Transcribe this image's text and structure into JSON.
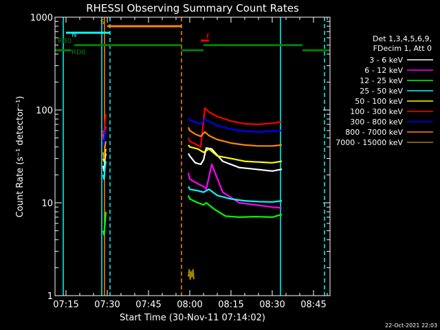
{
  "chart_data": {
    "type": "line",
    "title": "RHESSI Observing Summary Count Rates",
    "xlabel": "Start Time (30-Nov-11 07:14:02)",
    "ylabel": "Count Rate (s⁻¹ detector⁻¹)",
    "yscale": "log",
    "ylim": [
      1,
      1000
    ],
    "xlim": [
      "07:11",
      "08:51"
    ],
    "x_ticks": [
      "07:15",
      "07:30",
      "07:45",
      "08:00",
      "08:15",
      "08:30",
      "08:45"
    ],
    "y_ticks": [
      "1",
      "10",
      "100",
      "1000"
    ],
    "date_stamp": "22-Oct-2021 22:03",
    "legend": {
      "placement": "right",
      "header": [
        "Det 1,3,4,5,6,9,",
        "FDecim 1, Att 0"
      ]
    },
    "series": [
      {
        "name": "3 - 6 keV",
        "color": "#ffffff",
        "segments": [
          {
            "x": [
              "07:28:30",
              "07:28:50",
              "07:29:10",
              "07:29:30"
            ],
            "y": [
              25,
              22,
              30,
              34
            ]
          },
          {
            "x": [
              "07:59:30",
              "08:00:00",
              "08:02:00",
              "08:04:00",
              "08:05:00",
              "08:06:00",
              "08:08:00",
              "08:12:00",
              "08:18:00",
              "08:24:00",
              "08:30:00",
              "08:33:30"
            ],
            "y": [
              34,
              32,
              27,
              26,
              29,
              39,
              38,
              28,
              24,
              23,
              22,
              23
            ]
          }
        ]
      },
      {
        "name": "6 - 12 keV",
        "color": "#ff00ff",
        "segments": [
          {
            "x": [
              "07:28:30",
              "07:28:50",
              "07:29:10",
              "07:29:30"
            ],
            "y": [
              55,
              48,
              60,
              66
            ]
          },
          {
            "x": [
              "07:59:30",
              "08:00:00",
              "08:03:00",
              "08:05:00",
              "08:06:00",
              "08:08:00",
              "08:12:00",
              "08:18:00",
              "08:24:00",
              "08:30:00",
              "08:33:30"
            ],
            "y": [
              21,
              18,
              16,
              15,
              14,
              26,
              13,
              10,
              9.5,
              9,
              8.8
            ]
          }
        ]
      },
      {
        "name": "12 - 25 keV",
        "color": "#00ff00",
        "segments": [
          {
            "x": [
              "07:28:30",
              "07:28:50",
              "07:29:10",
              "07:29:30"
            ],
            "y": [
              5,
              4.5,
              6,
              8
            ]
          },
          {
            "x": [
              "07:59:30",
              "08:00:00",
              "08:03:00",
              "08:05:00",
              "08:06:00",
              "08:09:00",
              "08:13:00",
              "08:18:00",
              "08:24:00",
              "08:30:00",
              "08:33:30"
            ],
            "y": [
              12,
              11,
              10,
              9.5,
              10,
              8.5,
              7.2,
              7,
              7.1,
              7,
              7.5
            ]
          }
        ]
      },
      {
        "name": "25 - 50 keV",
        "color": "#00ffff",
        "segments": [
          {
            "x": [
              "07:28:30",
              "07:28:50",
              "07:29:10",
              "07:29:30"
            ],
            "y": [
              20,
              18,
              24,
              28
            ]
          },
          {
            "x": [
              "07:59:30",
              "08:00:00",
              "08:03:00",
              "08:05:00",
              "08:07:00",
              "08:10:00",
              "08:15:00",
              "08:20:00",
              "08:25:00",
              "08:30:00",
              "08:33:30"
            ],
            "y": [
              15,
              14,
              13.5,
              13,
              14,
              12,
              11,
              10.5,
              10.3,
              10.2,
              10.5
            ]
          }
        ]
      },
      {
        "name": "50 - 100 keV",
        "color": "#ffff00",
        "segments": [
          {
            "x": [
              "07:28:30",
              "07:28:50",
              "07:29:10",
              "07:29:30"
            ],
            "y": [
              30,
              28,
              34,
              38
            ]
          },
          {
            "x": [
              "07:59:30",
              "08:00:00",
              "08:03:00",
              "08:05:00",
              "08:07:00",
              "08:10:00",
              "08:15:00",
              "08:20:00",
              "08:25:00",
              "08:30:00",
              "08:33:30"
            ],
            "y": [
              42,
              40,
              38,
              35,
              38,
              32,
              30,
              28,
              27.5,
              27,
              28
            ]
          }
        ]
      },
      {
        "name": "100 - 300 keV",
        "color": "#ff0000",
        "segments": [
          {
            "x": [
              "07:28:30",
              "07:28:50",
              "07:29:10",
              "07:29:30"
            ],
            "y": [
              60,
              55,
              75,
              90
            ]
          },
          {
            "x": [
              "07:59:30",
              "08:00:00",
              "08:02:00",
              "08:04:00",
              "08:05:30",
              "08:07:00",
              "08:10:00",
              "08:15:00",
              "08:20:00",
              "08:25:00",
              "08:30:00",
              "08:33:30"
            ],
            "y": [
              50,
              46,
              43,
              40,
              105,
              95,
              85,
              76,
              71,
              70,
              72,
              75
            ]
          }
        ]
      },
      {
        "name": "300 - 800 keV",
        "color": "#0000ff",
        "segments": [
          {
            "x": [
              "07:28:30",
              "07:28:50",
              "07:29:10",
              "07:29:30"
            ],
            "y": [
              45,
              42,
              55,
              62
            ]
          },
          {
            "x": [
              "07:59:30",
              "08:00:00",
              "08:02:00",
              "08:04:00",
              "08:05:30",
              "08:07:00",
              "08:10:00",
              "08:15:00",
              "08:20:00",
              "08:25:00",
              "08:30:00",
              "08:33:30"
            ],
            "y": [
              82,
              78,
              74,
              70,
              80,
              75,
              68,
              62,
              59,
              58,
              59,
              60
            ]
          }
        ]
      },
      {
        "name": "800 - 7000 keV",
        "color": "#ff8800",
        "segments": [
          {
            "x": [
              "07:28:30",
              "07:28:50",
              "07:29:10",
              "07:29:30"
            ],
            "y": [
              35,
              30,
              40,
              46
            ]
          },
          {
            "x": [
              "07:59:30",
              "08:00:00",
              "08:02:00",
              "08:04:00",
              "08:05:30",
              "08:07:00",
              "08:10:00",
              "08:15:00",
              "08:20:00",
              "08:25:00",
              "08:30:00",
              "08:33:30"
            ],
            "y": [
              65,
              60,
              55,
              52,
              58,
              53,
              48,
              44,
              42,
              41,
              41,
              42
            ]
          }
        ]
      },
      {
        "name": "7000 - 15000 keV",
        "color": "#a08000",
        "segments": [
          {
            "x": [
              "07:59:30",
              "07:59:50",
              "08:00:10",
              "08:00:30",
              "08:00:50",
              "08:01:10",
              "08:01:30"
            ],
            "y": [
              1.6,
              1.9,
              1.5,
              1.8,
              1.6,
              1.9,
              1.5
            ]
          }
        ]
      }
    ],
    "annotations": [
      {
        "text": "S",
        "color": "#ff8800",
        "x": [
          "07:30",
          "07:57"
        ],
        "y": 800
      },
      {
        "text": "N",
        "color": "#00ffff",
        "x": [
          "07:15",
          "07:31"
        ],
        "y": 680
      },
      {
        "text": "F",
        "color": "#ff0000",
        "x": [
          "08:04",
          "08:07"
        ],
        "y": 560
      },
      {
        "text": "RB0",
        "color": "#008000",
        "x": [
          [
            "07:18",
            "07:57"
          ],
          [
            "08:05",
            "08:41"
          ]
        ],
        "y": 500
      },
      {
        "text": "RD6",
        "color": "#008000",
        "x": [
          [
            "07:11",
            "07:17"
          ],
          [
            "07:57",
            "08:05"
          ],
          [
            "08:41",
            "08:51"
          ]
        ],
        "y": 440
      }
    ],
    "vlines": [
      {
        "x": "07:14",
        "color": "#00ffff",
        "style": "solid"
      },
      {
        "x": "07:28",
        "color": "#00ffff",
        "style": "solid"
      },
      {
        "x": "07:29",
        "color": "#ff8800",
        "style": "solid"
      },
      {
        "x": "07:31",
        "color": "#00ffff",
        "style": "dashed"
      },
      {
        "x": "07:57",
        "color": "#ff8800",
        "style": "dashed"
      },
      {
        "x": "08:33",
        "color": "#00ffff",
        "style": "solid"
      },
      {
        "x": "08:49",
        "color": "#00ffff",
        "style": "dashed"
      }
    ]
  }
}
